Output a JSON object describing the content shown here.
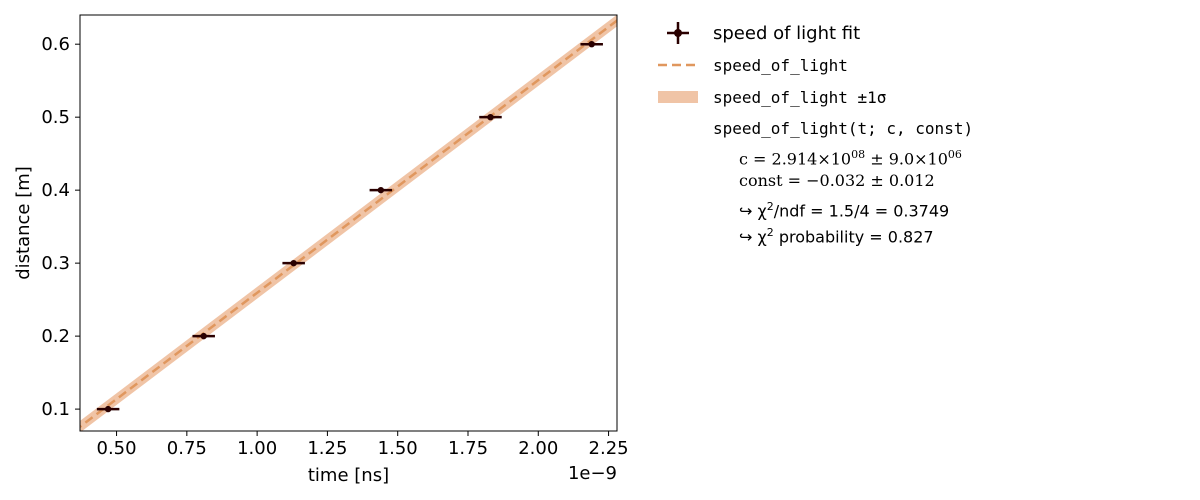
{
  "chart_data": {
    "type": "scatter",
    "title": "",
    "xlabel": "time [ns]",
    "ylabel": "distance [m]",
    "x_offset_label": "1e−9",
    "xlim": [
      0.37,
      2.28
    ],
    "ylim": [
      0.07,
      0.64
    ],
    "xticks": [
      0.5,
      0.75,
      1.0,
      1.25,
      1.5,
      1.75,
      2.0,
      2.25
    ],
    "xtick_labels": [
      "0.50",
      "0.75",
      "1.00",
      "1.25",
      "1.50",
      "1.75",
      "2.00",
      "2.25"
    ],
    "yticks": [
      0.1,
      0.2,
      0.3,
      0.4,
      0.5,
      0.6
    ],
    "ytick_labels": [
      "0.1",
      "0.2",
      "0.3",
      "0.4",
      "0.5",
      "0.6"
    ],
    "grid": false,
    "series": [
      {
        "name": "speed of light fit",
        "kind": "errorbar",
        "color": "#2a0000",
        "x": [
          0.47,
          0.81,
          1.13,
          1.44,
          1.83,
          2.19
        ],
        "y": [
          0.1,
          0.2,
          0.3,
          0.4,
          0.5,
          0.6
        ],
        "xerr": [
          0.04,
          0.04,
          0.04,
          0.04,
          0.04,
          0.04
        ],
        "yerr": [
          0.002,
          0.002,
          0.002,
          0.002,
          0.002,
          0.002
        ]
      },
      {
        "name": "speed_of_light",
        "kind": "line",
        "style": "dashed",
        "color": "#e0975e",
        "slope": 0.2914,
        "intercept": -0.032
      },
      {
        "name": "speed_of_light ±1σ",
        "kind": "band",
        "color": "#f0c4a6",
        "halfwidth": 0.008
      }
    ],
    "legend": {
      "placement": "outside-right",
      "entries": [
        "speed of light fit",
        "speed_of_light",
        "speed_of_light ±1σ"
      ]
    },
    "fit_info": {
      "model": "speed_of_light(t; c, const)",
      "c": "c = 2.914×10",
      "c_exp": "08",
      "c_err": " ± 9.0×10",
      "c_err_exp": "06",
      "const": "const = −0.032 ± 0.012",
      "chi2_ndf": "↪ χ",
      "chi2_ndf_rest": "/ndf = 1.5/4 = 0.3749",
      "chi2_prob": "↪ χ",
      "chi2_prob_rest": " probability = 0.827",
      "sq": "2"
    }
  }
}
